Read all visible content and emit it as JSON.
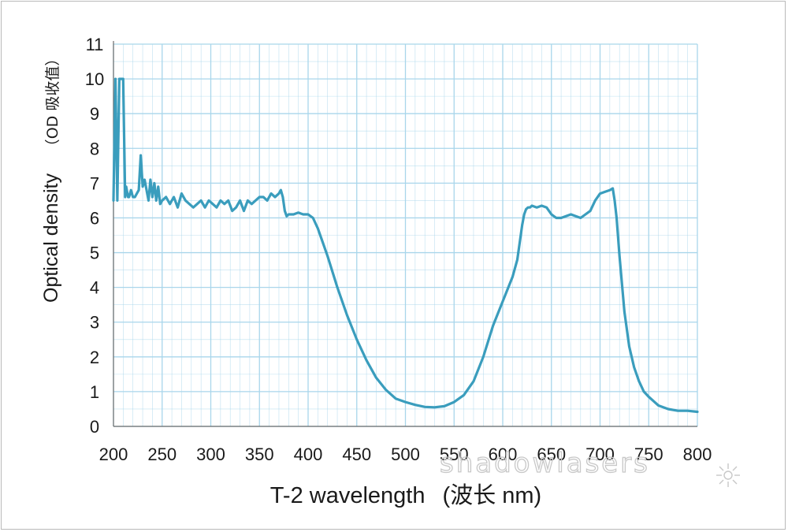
{
  "chart_data": {
    "type": "line",
    "title": "",
    "xlabel": "T-2 wavelength",
    "xlabel_suffix": "(波长 nm)",
    "ylabel": "Optical density",
    "ylabel_suffix": "（OD 吸收值）",
    "xlim": [
      200,
      800
    ],
    "ylim": [
      0,
      11
    ],
    "xticks": [
      200,
      250,
      300,
      350,
      400,
      450,
      500,
      550,
      600,
      650,
      700,
      750,
      800
    ],
    "yticks": [
      0,
      1,
      2,
      3,
      4,
      5,
      6,
      7,
      8,
      9,
      10,
      11
    ],
    "grid": true,
    "minor_grid_x": 10,
    "minor_grid_y": 0.5,
    "colors": {
      "line": "#3a9dbd",
      "grid": "#a9d6eb",
      "axis": "#6c6c6c"
    },
    "series": [
      {
        "x": [
          200,
          202,
          204,
          206,
          208,
          210,
          212,
          213,
          215,
          216,
          218,
          220,
          222,
          224,
          226,
          228,
          230,
          232,
          234,
          236,
          238,
          240,
          242,
          244,
          246,
          248,
          250,
          254,
          258,
          262,
          266,
          270,
          274,
          278,
          282,
          286,
          290,
          294,
          298,
          302,
          306,
          310,
          314,
          318,
          322,
          326,
          330,
          334,
          338,
          342,
          346,
          350,
          354,
          358,
          362,
          366,
          370,
          372,
          374,
          376,
          378,
          380,
          385,
          390,
          395,
          400,
          405,
          410,
          415,
          420,
          430,
          440,
          450,
          460,
          470,
          480,
          490,
          500,
          510,
          520,
          530,
          540,
          550,
          560,
          570,
          580,
          590,
          600,
          610,
          615,
          620,
          622,
          624,
          626,
          628,
          630,
          635,
          640,
          645,
          650,
          655,
          660,
          665,
          670,
          675,
          680,
          685,
          690,
          695,
          700,
          705,
          710,
          713,
          715,
          717,
          720,
          725,
          730,
          735,
          740,
          745,
          750,
          760,
          770,
          780,
          790,
          800
        ],
        "values": [
          6.5,
          10,
          6.5,
          10,
          10,
          10,
          6.6,
          6.9,
          6.6,
          6.6,
          6.8,
          6.6,
          6.6,
          6.7,
          6.8,
          7.8,
          6.9,
          7.1,
          6.8,
          6.5,
          7.1,
          6.6,
          7.0,
          6.5,
          6.9,
          6.4,
          6.5,
          6.6,
          6.4,
          6.6,
          6.3,
          6.7,
          6.5,
          6.4,
          6.3,
          6.4,
          6.5,
          6.3,
          6.5,
          6.4,
          6.3,
          6.5,
          6.4,
          6.5,
          6.2,
          6.3,
          6.5,
          6.2,
          6.5,
          6.4,
          6.5,
          6.6,
          6.6,
          6.5,
          6.7,
          6.6,
          6.7,
          6.8,
          6.6,
          6.2,
          6.05,
          6.1,
          6.1,
          6.15,
          6.1,
          6.1,
          6.0,
          5.7,
          5.3,
          4.9,
          4.0,
          3.2,
          2.5,
          1.9,
          1.4,
          1.05,
          0.8,
          0.7,
          0.62,
          0.56,
          0.55,
          0.58,
          0.7,
          0.9,
          1.3,
          2.0,
          2.9,
          3.6,
          4.3,
          4.8,
          5.8,
          6.1,
          6.25,
          6.3,
          6.3,
          6.35,
          6.3,
          6.35,
          6.3,
          6.1,
          6.0,
          6.0,
          6.05,
          6.1,
          6.05,
          6.0,
          6.1,
          6.2,
          6.5,
          6.7,
          6.75,
          6.8,
          6.85,
          6.5,
          6.0,
          4.9,
          3.3,
          2.3,
          1.7,
          1.3,
          1.0,
          0.85,
          0.6,
          0.5,
          0.45,
          0.45,
          0.42
        ]
      }
    ]
  },
  "watermark": {
    "text": "shadowlasers"
  }
}
